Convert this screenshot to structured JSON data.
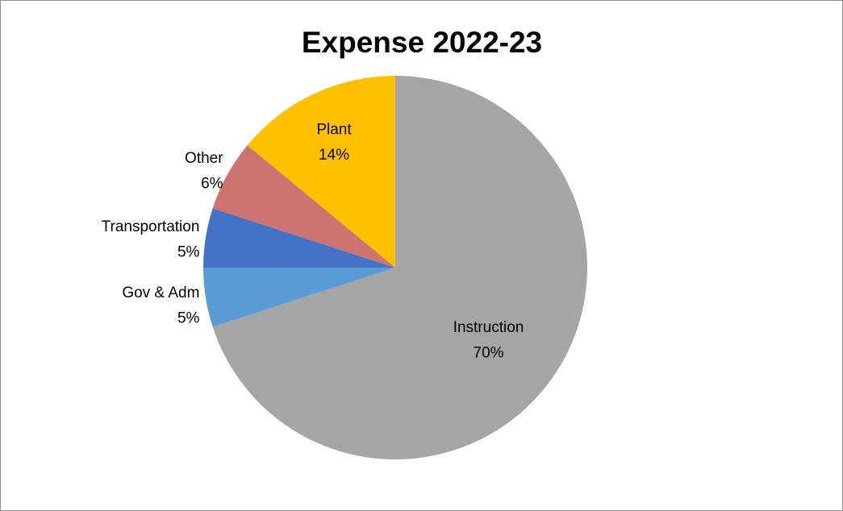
{
  "chart_data": {
    "type": "pie",
    "title": "Expense 2022-23",
    "categories": [
      "Instruction",
      "Gov & Adm",
      "Transportation",
      "Other",
      "Plant"
    ],
    "values": [
      70,
      5,
      5,
      6,
      14
    ],
    "value_labels": [
      "70%",
      "5%",
      "5%",
      "6%",
      "14%"
    ],
    "colors": [
      "#a5a5a5",
      "#5b9bd5",
      "#4472c4",
      "#cd7370",
      "#ffc000"
    ]
  }
}
